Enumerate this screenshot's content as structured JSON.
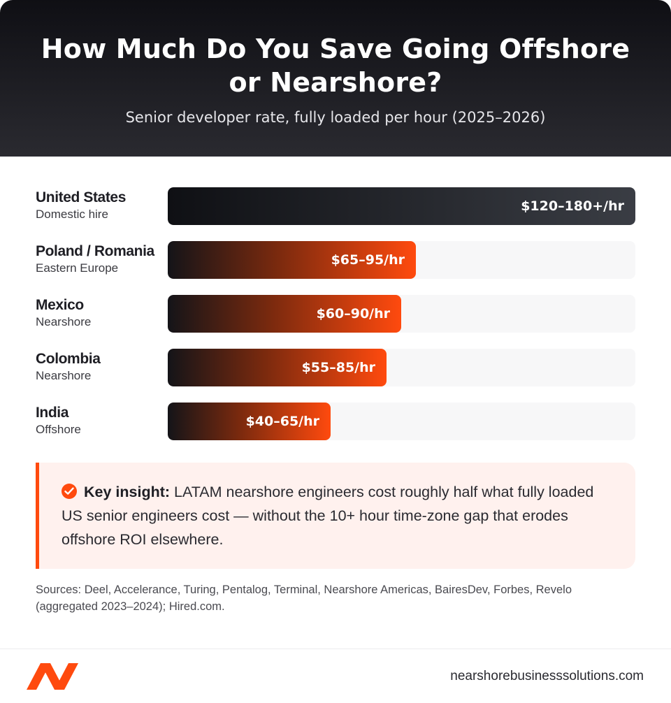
{
  "header": {
    "title_line1": "How Much Do You Save Going Offshore",
    "title_line2": "or Nearshore?",
    "subtitle": "Senior developer rate, fully loaded per hour (2025–2026)"
  },
  "chart_data": {
    "type": "bar",
    "orientation": "horizontal",
    "title": "How Much Do You Save Going Offshore or Nearshore?",
    "subtitle": "Senior developer rate, fully loaded per hour (2025–2026)",
    "unit": "$/hr",
    "xlim": [
      0,
      180
    ],
    "bars": [
      {
        "category": "United States",
        "subcategory": "Domestic hire",
        "label": "$120–180+/hr",
        "low": 120,
        "high": 180,
        "color": "#2a2d33"
      },
      {
        "category": "Poland / Romania",
        "subcategory": "Eastern Europe",
        "label": "$65–95/hr",
        "low": 65,
        "high": 95,
        "color": "#ff4a0e"
      },
      {
        "category": "Mexico",
        "subcategory": "Nearshore",
        "label": "$60–90/hr",
        "low": 60,
        "high": 90,
        "color": "#ff4a0e"
      },
      {
        "category": "Colombia",
        "subcategory": "Nearshore",
        "label": "$55–85/hr",
        "low": 55,
        "high": 85,
        "color": "#ff4a0e"
      },
      {
        "category": "India",
        "subcategory": "Offshore",
        "label": "$40–65/hr",
        "low": 40,
        "high": 65,
        "color": "#ff4a0e"
      }
    ]
  },
  "insight": {
    "icon": "check-circle-icon",
    "lead": "Key insight:",
    "text": " LATAM nearshore engineers cost roughly half what fully loaded US senior engineers cost — without the 10+ hour time-zone gap that erodes offshore ROI elsewhere."
  },
  "sources": "Sources: Deel, Accelerance, Turing, Pentalog, Terminal, Nearshore Americas, BairesDev, Forbes, Revelo (aggregated 2023–2024); Hired.com.",
  "footer": {
    "logo": "nearshore-logo-icon",
    "domain": "nearshorebusinesssolutions.com"
  },
  "colors": {
    "accent": "#ff4a0e",
    "header_dark": "#0f0f14",
    "insight_bg": "#fff1ee"
  }
}
